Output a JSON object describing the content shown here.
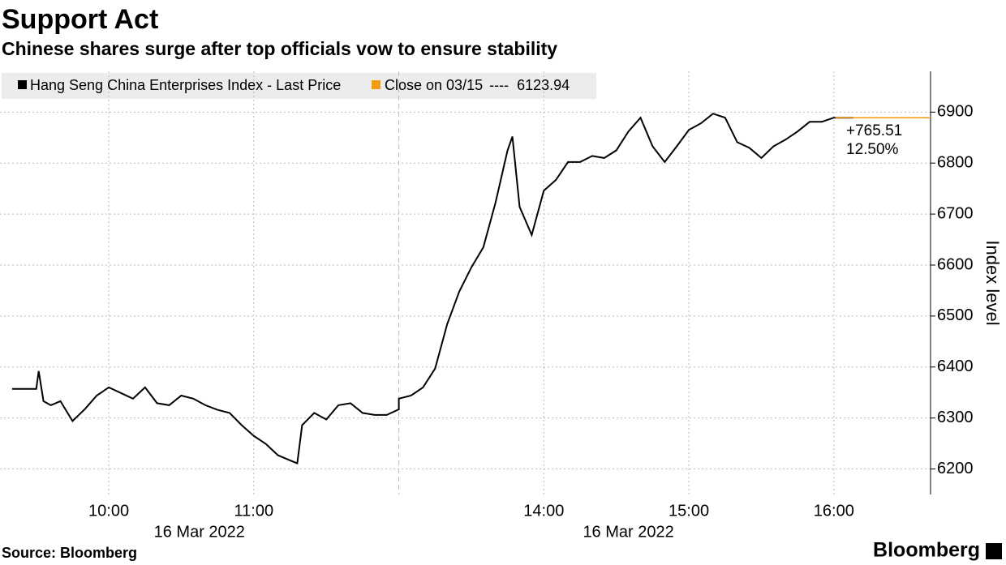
{
  "chart_data": {
    "type": "line",
    "title": "Support Act",
    "subtitle": "Chinese shares surge after top officials vow to ensure stability",
    "y_axis_label": "Index level",
    "source": "Source: Bloomberg",
    "brand": "Bloomberg",
    "x": [
      "09:20",
      "09:30",
      "09:31",
      "09:33",
      "09:36",
      "09:40",
      "09:45",
      "09:50",
      "09:55",
      "10:00",
      "10:05",
      "10:10",
      "10:15",
      "10:20",
      "10:25",
      "10:30",
      "10:35",
      "10:40",
      "10:45",
      "10:50",
      "10:55",
      "11:00",
      "11:05",
      "11:10",
      "11:15",
      "11:18",
      "11:20",
      "11:25",
      "11:30",
      "11:35",
      "11:40",
      "11:45",
      "11:50",
      "11:55",
      "12:00",
      "13:00",
      "13:05",
      "13:10",
      "13:15",
      "13:20",
      "13:25",
      "13:30",
      "13:35",
      "13:40",
      "13:45",
      "13:47",
      "13:50",
      "13:55",
      "14:00",
      "14:05",
      "14:10",
      "14:15",
      "14:20",
      "14:25",
      "14:30",
      "14:35",
      "14:40",
      "14:45",
      "14:50",
      "14:55",
      "15:00",
      "15:05",
      "15:10",
      "15:15",
      "15:20",
      "15:25",
      "15:30",
      "15:35",
      "15:40",
      "15:45",
      "15:50",
      "15:55",
      "16:00",
      "16:08"
    ],
    "series": [
      {
        "name": "Hang Seng China Enterprises Index - Last Price",
        "color": "#000000",
        "values": [
          6357,
          6357,
          6392,
          6333,
          6325,
          6333,
          6294,
          6317,
          6344,
          6360,
          6349,
          6338,
          6360,
          6329,
          6325,
          6344,
          6338,
          6325,
          6316,
          6310,
          6286,
          6265,
          6249,
          6227,
          6217,
          6211,
          6286,
          6310,
          6297,
          6325,
          6329,
          6310,
          6306,
          6306,
          6317,
          6338,
          6344,
          6360,
          6397,
          6484,
          6548,
          6595,
          6635,
          6722,
          6825,
          6852,
          6714,
          6659,
          6746,
          6767,
          6802,
          6802,
          6814,
          6810,
          6825,
          6862,
          6889,
          6833,
          6802,
          6833,
          6865,
          6878,
          6897,
          6889,
          6841,
          6830,
          6810,
          6833,
          6846,
          6862,
          6881,
          6881,
          6889,
          6889
        ]
      }
    ],
    "reference": {
      "name": "Close on 03/15",
      "separator": "----",
      "value": 6123.94,
      "color": "#f39c12"
    },
    "change_label": "+765.51",
    "change_pct_label": "12.50%",
    "xlim": [
      "09:15",
      "16:40"
    ],
    "xbreak": [
      "12:00",
      "13:00"
    ],
    "xticks": [
      "10:00",
      "11:00",
      "14:00",
      "15:00",
      "16:00"
    ],
    "sessions": [
      {
        "label": "16 Mar 2022",
        "start": "09:15",
        "end": "12:00"
      },
      {
        "label": "16 Mar 2022",
        "start": "13:00",
        "end": "16:10"
      }
    ],
    "ylim": [
      6150,
      6980
    ],
    "yticks": [
      6200,
      6300,
      6400,
      6500,
      6600,
      6700,
      6800,
      6900
    ],
    "grid": true
  }
}
